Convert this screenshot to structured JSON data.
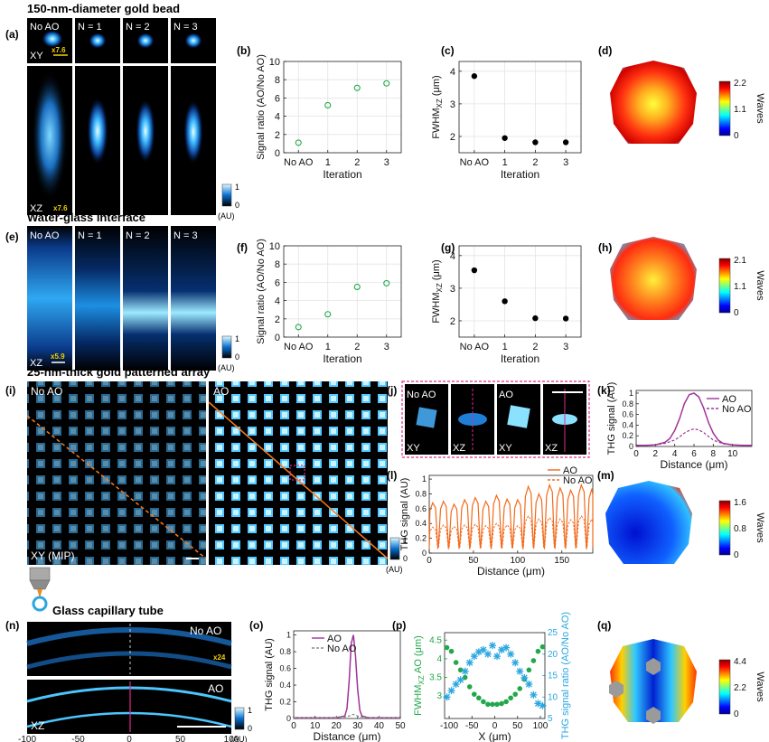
{
  "sections": {
    "bead": "150-nm-diameter gold bead",
    "water": "Water-glass interface",
    "array": "25-nm-thick gold patterned array",
    "capillary": "Glass capillary tube"
  },
  "panel_letters": [
    "(a)",
    "(b)",
    "(c)",
    "(d)",
    "(e)",
    "(f)",
    "(g)",
    "(h)",
    "(i)",
    "(j)",
    "(k)",
    "(l)",
    "(m)",
    "(n)",
    "(o)",
    "(p)",
    "(q)"
  ],
  "image_labels": {
    "no_ao": "No AO",
    "ao": "AO",
    "n1": "N = 1",
    "n2": "N = 2",
    "n3": "N = 3",
    "xy": "XY",
    "xz": "XZ",
    "xy_mip": "XY (MIP)",
    "zoom_a_xy": "x7.6",
    "zoom_a_xz": "x7.6",
    "zoom_e": "x5.9",
    "zoom_n": "x24"
  },
  "colorbar": {
    "max": "1",
    "min": "0",
    "unit": "(AU)"
  },
  "wavefront_unit": "Waves",
  "chart_data": [
    {
      "id": "b",
      "type": "scatter",
      "ylabel": "Signal ratio (AO/No AO)",
      "xlabel": "Iteration",
      "categories": [
        "No AO",
        "1",
        "2",
        "3"
      ],
      "values": [
        1.1,
        5.2,
        7.1,
        7.6
      ],
      "ylim": [
        0,
        10
      ],
      "yticks": [
        "0",
        "2",
        "4",
        "6",
        "8",
        "10"
      ],
      "grid": true
    },
    {
      "id": "c",
      "type": "scatter",
      "ylabel": "FWHM",
      "ylabel_sub": "XZ",
      "ylabel_unit": " (μm)",
      "xlabel": "Iteration",
      "categories": [
        "No AO",
        "1",
        "2",
        "3"
      ],
      "values": [
        3.85,
        1.95,
        1.82,
        1.82
      ],
      "ylim": [
        1.5,
        4.3
      ],
      "yticks": [
        "2",
        "3",
        "4"
      ],
      "grid": true
    },
    {
      "id": "f",
      "type": "scatter",
      "ylabel": "Signal ratio (AO/No AO)",
      "xlabel": "Iteration",
      "categories": [
        "No AO",
        "1",
        "2",
        "3"
      ],
      "values": [
        1.1,
        2.5,
        5.5,
        5.9
      ],
      "ylim": [
        0,
        10
      ],
      "yticks": [
        "0",
        "2",
        "4",
        "6",
        "8",
        "10"
      ],
      "grid": true
    },
    {
      "id": "g",
      "type": "scatter",
      "ylabel": "FWHM",
      "ylabel_sub": "XZ",
      "ylabel_unit": " (μm)",
      "xlabel": "Iteration",
      "categories": [
        "No AO",
        "1",
        "2",
        "3"
      ],
      "values": [
        3.55,
        2.6,
        2.08,
        2.07
      ],
      "ylim": [
        1.5,
        4.3
      ],
      "yticks": [
        "2",
        "3",
        "4"
      ],
      "grid": true
    },
    {
      "id": "k",
      "type": "line",
      "ylabel": "THG signal (AU)",
      "xlabel": "Distance (μm)",
      "xlim": [
        0,
        12
      ],
      "ylim": [
        0,
        1.05
      ],
      "xticks": [
        "0",
        "2",
        "4",
        "6",
        "8",
        "10"
      ],
      "yticks": [
        "0",
        "0.2",
        "0.4",
        "0.6",
        "0.8",
        "1"
      ],
      "series": [
        {
          "name": "AO",
          "style": "solid",
          "x": [
            0,
            1,
            2,
            3,
            3.5,
            4,
            4.5,
            5,
            5.5,
            6,
            6.5,
            7,
            7.5,
            8,
            8.5,
            9,
            10,
            11,
            12
          ],
          "y": [
            0.02,
            0.02,
            0.03,
            0.08,
            0.15,
            0.3,
            0.52,
            0.8,
            0.97,
            1.0,
            0.93,
            0.72,
            0.45,
            0.25,
            0.12,
            0.06,
            0.03,
            0.02,
            0.02
          ]
        },
        {
          "name": "No AO",
          "style": "dashed",
          "x": [
            0,
            1,
            2,
            3,
            4,
            4.5,
            5,
            5.5,
            6,
            6.5,
            7,
            7.5,
            8,
            9,
            10,
            11,
            12
          ],
          "y": [
            0.02,
            0.02,
            0.03,
            0.06,
            0.12,
            0.18,
            0.25,
            0.3,
            0.33,
            0.31,
            0.26,
            0.19,
            0.12,
            0.05,
            0.03,
            0.02,
            0.02
          ]
        }
      ]
    },
    {
      "id": "l",
      "type": "line",
      "ylabel": "THG signal (AU)",
      "xlabel": "Distance (μm)",
      "xlim": [
        0,
        185
      ],
      "ylim": [
        0,
        1.05
      ],
      "xticks": [
        "0",
        "50",
        "100",
        "150"
      ],
      "yticks": [
        "0",
        "0.2",
        "0.4",
        "0.6",
        "0.8",
        "1"
      ],
      "peak_x": [
        4,
        16,
        28,
        40,
        52,
        64,
        76,
        88,
        100,
        112,
        124,
        136,
        148,
        160,
        172,
        184
      ],
      "series": [
        {
          "name": "AO",
          "style": "solid",
          "peaks": [
            0.68,
            0.7,
            0.66,
            0.72,
            0.75,
            0.7,
            0.78,
            0.73,
            0.72,
            0.9,
            0.8,
            0.92,
            0.88,
            0.85,
            0.92,
            0.87
          ],
          "baseline": 0.08
        },
        {
          "name": "No AO",
          "style": "dashed",
          "peaks": [
            0.35,
            0.38,
            0.36,
            0.38,
            0.39,
            0.37,
            0.4,
            0.38,
            0.37,
            0.5,
            0.46,
            0.48,
            0.46,
            0.45,
            0.5,
            0.46
          ],
          "baseline": 0.06
        }
      ]
    },
    {
      "id": "o",
      "type": "line",
      "ylabel": "THG signal (AU)",
      "xlabel": "Distance (μm)",
      "xlim": [
        0,
        50
      ],
      "ylim": [
        0,
        1.05
      ],
      "xticks": [
        "0",
        "10",
        "20",
        "30",
        "40",
        "50"
      ],
      "yticks": [
        "0",
        "0.2",
        "0.4",
        "0.6",
        "0.8",
        "1"
      ],
      "series": [
        {
          "name": "AO",
          "style": "solid",
          "x": [
            0,
            10,
            20,
            24,
            25,
            26,
            27,
            28,
            29,
            30,
            31,
            32,
            35,
            40,
            50
          ],
          "y": [
            0.01,
            0.01,
            0.01,
            0.03,
            0.12,
            0.45,
            0.9,
            1.0,
            0.75,
            0.35,
            0.1,
            0.03,
            0.01,
            0.01,
            0.01
          ]
        },
        {
          "name": "No AO",
          "style": "dashed",
          "x": [
            0,
            10,
            20,
            25,
            27,
            28,
            29,
            31,
            35,
            40,
            50
          ],
          "y": [
            0.01,
            0.01,
            0.01,
            0.02,
            0.04,
            0.05,
            0.04,
            0.02,
            0.01,
            0.01,
            0.01
          ]
        }
      ]
    },
    {
      "id": "p",
      "type": "scatter",
      "xlabel": "X (μm)",
      "ylabel_left": "FWHM",
      "ylabel_left_sub": "XZ",
      "ylabel_left_unit": " AO (μm)",
      "ylabel_right": "THG signal ratio (AO/No AO)",
      "xlim": [
        -110,
        110
      ],
      "xticks": [
        "-100",
        "-50",
        "0",
        "50",
        "100"
      ],
      "ylim_left": [
        2.4,
        4.7
      ],
      "yticks_left": [
        "3",
        "3.5",
        "4",
        "4.5"
      ],
      "ylim_right": [
        5,
        25
      ],
      "yticks_right": [
        "5",
        "10",
        "15",
        "20",
        "25"
      ],
      "series": [
        {
          "name": "FWHM XZ AO",
          "axis": "left",
          "color": "#22a84a",
          "x": [
            -105,
            -95,
            -85,
            -75,
            -65,
            -55,
            -45,
            -35,
            -25,
            -15,
            -5,
            5,
            15,
            25,
            35,
            45,
            55,
            65,
            75,
            85,
            95,
            105
          ],
          "y": [
            4.3,
            4.2,
            3.9,
            3.7,
            3.5,
            3.25,
            3.05,
            2.95,
            2.85,
            2.78,
            2.78,
            2.78,
            2.8,
            2.85,
            2.95,
            3.05,
            3.2,
            3.45,
            3.7,
            3.95,
            4.2,
            4.32
          ]
        },
        {
          "name": "THG signal ratio",
          "axis": "right",
          "color": "#2aa7e0",
          "x": [
            -105,
            -95,
            -85,
            -75,
            -65,
            -55,
            -45,
            -35,
            -25,
            -15,
            -5,
            5,
            15,
            25,
            35,
            45,
            55,
            65,
            75,
            85,
            95,
            105
          ],
          "y": [
            10,
            11.5,
            13,
            14,
            16,
            18,
            19.5,
            20.5,
            21,
            20,
            22,
            19.5,
            21,
            21.5,
            20,
            18,
            16,
            14.5,
            13,
            10.5,
            8.5,
            8
          ]
        }
      ]
    }
  ],
  "wavefronts": [
    {
      "id": "d",
      "max": "2.2",
      "mid": "1.1",
      "min": "0"
    },
    {
      "id": "h",
      "max": "2.1",
      "mid": "1.1",
      "min": "0"
    },
    {
      "id": "m",
      "max": "1.6",
      "mid": "0.8",
      "min": "0"
    },
    {
      "id": "q",
      "max": "4.4",
      "mid": "2.2",
      "min": "0"
    }
  ],
  "n_axis": {
    "label": "X (μm)",
    "ticks": [
      "-100",
      "-50",
      "0",
      "50",
      "100"
    ]
  }
}
